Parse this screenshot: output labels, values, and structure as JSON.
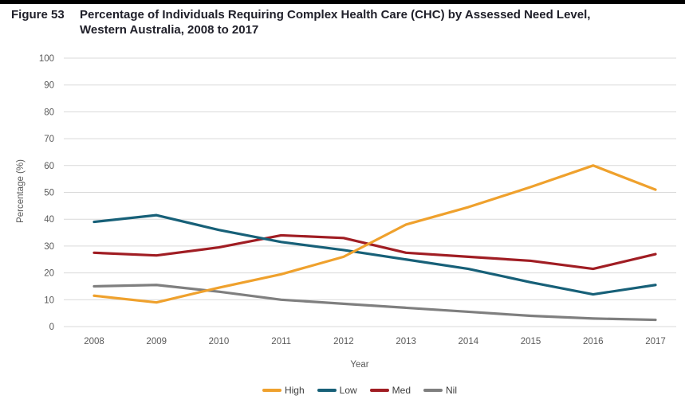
{
  "page": {
    "top_bar_color": "#000000"
  },
  "figure": {
    "label": "Figure 53",
    "title_line1": "Percentage of Individuals Requiring Complex Health Care (CHC) by Assessed Need Level,",
    "title_line2": "Western Australia, 2008 to 2017"
  },
  "chart_data": {
    "type": "line",
    "title": "Percentage of Individuals Requiring Complex Health Care (CHC) by Assessed Need Level, Western Australia, 2008 to 2017",
    "xlabel": "Year",
    "ylabel": "Percentage (%)",
    "ylim": [
      0,
      100
    ],
    "ytick_step": 10,
    "grid": "horizontal-only",
    "legend_position": "bottom-center",
    "categories": [
      "2008",
      "2009",
      "2010",
      "2011",
      "2012",
      "2013",
      "2014",
      "2015",
      "2016",
      "2017"
    ],
    "series": [
      {
        "name": "High",
        "color": "#EFA12D",
        "values": [
          11.5,
          9,
          14.5,
          19.5,
          26,
          38,
          44.5,
          52,
          60,
          51
        ]
      },
      {
        "name": "Low",
        "color": "#176078",
        "values": [
          39,
          41.5,
          36,
          31.5,
          28.5,
          25,
          21.5,
          16.5,
          12,
          15.5
        ]
      },
      {
        "name": "Med",
        "color": "#A01D23",
        "values": [
          27.5,
          26.5,
          29.5,
          34,
          33,
          27.5,
          26,
          24.5,
          21.5,
          27
        ]
      },
      {
        "name": "Nil",
        "color": "#7F7F7F",
        "values": [
          15,
          15.5,
          13,
          10,
          8.5,
          7,
          5.5,
          4,
          3,
          2.5
        ]
      }
    ]
  },
  "colors": {
    "gridline": "#D9D9D9",
    "tick_label": "#595959",
    "title_text": "#20202A"
  }
}
